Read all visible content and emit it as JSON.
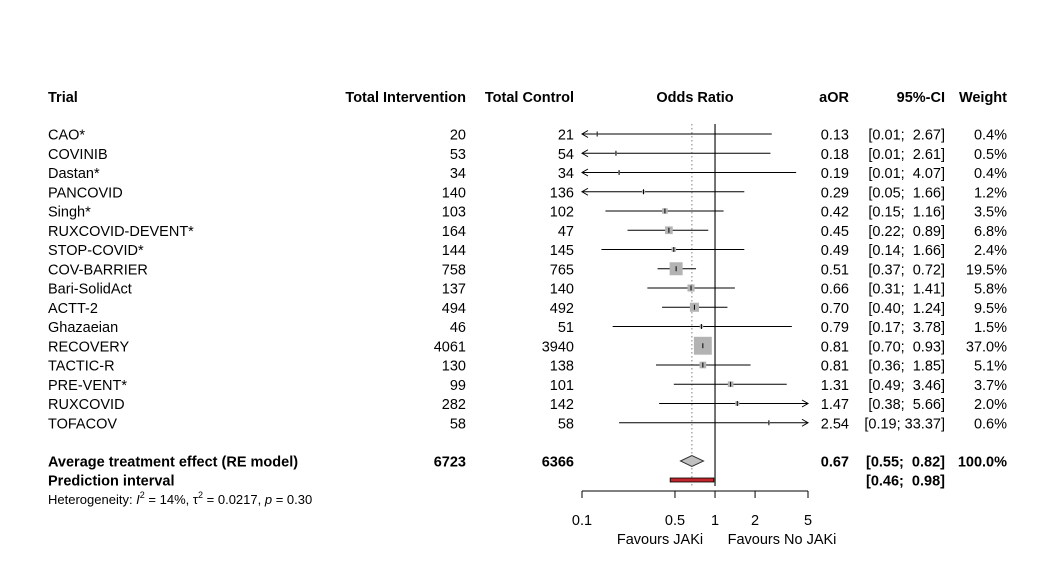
{
  "chart_data": {
    "type": "forest",
    "columns": {
      "trial": "Trial",
      "total_intervention": "Total Intervention",
      "total_control": "Total Control",
      "odds_ratio": "Odds Ratio",
      "aor": "aOR",
      "ci": "95%-CI",
      "weight": "Weight"
    },
    "studies": [
      {
        "trial": "CAO*",
        "n_int": "20",
        "n_ctrl": "21",
        "or": 0.13,
        "lo": 0.01,
        "hi": 2.67,
        "aor": "0.13",
        "ci": "[0.01;  2.67]",
        "weight": "0.4%",
        "w": 0.4
      },
      {
        "trial": "COVINIB",
        "n_int": "53",
        "n_ctrl": "54",
        "or": 0.18,
        "lo": 0.01,
        "hi": 2.61,
        "aor": "0.18",
        "ci": "[0.01;  2.61]",
        "weight": "0.5%",
        "w": 0.5
      },
      {
        "trial": "Dastan*",
        "n_int": "34",
        "n_ctrl": "34",
        "or": 0.19,
        "lo": 0.01,
        "hi": 4.07,
        "aor": "0.19",
        "ci": "[0.01;  4.07]",
        "weight": "0.4%",
        "w": 0.4
      },
      {
        "trial": "PANCOVID",
        "n_int": "140",
        "n_ctrl": "136",
        "or": 0.29,
        "lo": 0.05,
        "hi": 1.66,
        "aor": "0.29",
        "ci": "[0.05;  1.66]",
        "weight": "1.2%",
        "w": 1.2
      },
      {
        "trial": "Singh*",
        "n_int": "103",
        "n_ctrl": "102",
        "or": 0.42,
        "lo": 0.15,
        "hi": 1.16,
        "aor": "0.42",
        "ci": "[0.15;  1.16]",
        "weight": "3.5%",
        "w": 3.5
      },
      {
        "trial": "RUXCOVID-DEVENT*",
        "n_int": "164",
        "n_ctrl": "47",
        "or": 0.45,
        "lo": 0.22,
        "hi": 0.89,
        "aor": "0.45",
        "ci": "[0.22;  0.89]",
        "weight": "6.8%",
        "w": 6.8
      },
      {
        "trial": "STOP-COVID*",
        "n_int": "144",
        "n_ctrl": "145",
        "or": 0.49,
        "lo": 0.14,
        "hi": 1.66,
        "aor": "0.49",
        "ci": "[0.14;  1.66]",
        "weight": "2.4%",
        "w": 2.4
      },
      {
        "trial": "COV-BARRIER",
        "n_int": "758",
        "n_ctrl": "765",
        "or": 0.51,
        "lo": 0.37,
        "hi": 0.72,
        "aor": "0.51",
        "ci": "[0.37;  0.72]",
        "weight": "19.5%",
        "w": 19.5
      },
      {
        "trial": "Bari-SolidAct",
        "n_int": "137",
        "n_ctrl": "140",
        "or": 0.66,
        "lo": 0.31,
        "hi": 1.41,
        "aor": "0.66",
        "ci": "[0.31;  1.41]",
        "weight": "5.8%",
        "w": 5.8
      },
      {
        "trial": "ACTT-2",
        "n_int": "494",
        "n_ctrl": "492",
        "or": 0.7,
        "lo": 0.4,
        "hi": 1.24,
        "aor": "0.70",
        "ci": "[0.40;  1.24]",
        "weight": "9.5%",
        "w": 9.5
      },
      {
        "trial": "Ghazaeian",
        "n_int": "46",
        "n_ctrl": "51",
        "or": 0.79,
        "lo": 0.17,
        "hi": 3.78,
        "aor": "0.79",
        "ci": "[0.17;  3.78]",
        "weight": "1.5%",
        "w": 1.5
      },
      {
        "trial": "RECOVERY",
        "n_int": "4061",
        "n_ctrl": "3940",
        "or": 0.81,
        "lo": 0.7,
        "hi": 0.93,
        "aor": "0.81",
        "ci": "[0.70;  0.93]",
        "weight": "37.0%",
        "w": 37.0
      },
      {
        "trial": "TACTIC-R",
        "n_int": "130",
        "n_ctrl": "138",
        "or": 0.81,
        "lo": 0.36,
        "hi": 1.85,
        "aor": "0.81",
        "ci": "[0.36;  1.85]",
        "weight": "5.1%",
        "w": 5.1
      },
      {
        "trial": "PRE-VENT*",
        "n_int": "99",
        "n_ctrl": "101",
        "or": 1.31,
        "lo": 0.49,
        "hi": 3.46,
        "aor": "1.31",
        "ci": "[0.49;  3.46]",
        "weight": "3.7%",
        "w": 3.7
      },
      {
        "trial": "RUXCOVID",
        "n_int": "282",
        "n_ctrl": "142",
        "or": 1.47,
        "lo": 0.38,
        "hi": 5.66,
        "aor": "1.47",
        "ci": "[0.38;  5.66]",
        "weight": "2.0%",
        "w": 2.0
      },
      {
        "trial": "TOFACOV",
        "n_int": "58",
        "n_ctrl": "58",
        "or": 2.54,
        "lo": 0.19,
        "hi": 33.37,
        "aor": "2.54",
        "ci": "[0.19; 33.37]",
        "weight": "0.6%",
        "w": 0.6
      }
    ],
    "summary": {
      "label": "Average treatment effect (RE model)",
      "n_int": "6723",
      "n_ctrl": "6366",
      "or": 0.67,
      "lo": 0.55,
      "hi": 0.82,
      "aor": "0.67",
      "ci": "[0.55;  0.82]",
      "weight": "100.0%"
    },
    "prediction": {
      "label": "Prediction interval",
      "lo": 0.46,
      "hi": 0.98,
      "ci": "[0.46;  0.98]"
    },
    "heterogeneity": {
      "prefix": "Heterogeneity: ",
      "i2_symbol": "I",
      "i2_sup": "2",
      "i2_value": " = 14%, ",
      "tau_symbol": "τ",
      "tau_sup": "2",
      "tau_value": " = 0.0217, ",
      "p_symbol": "p",
      "p_value": " = 0.30"
    },
    "x_axis": {
      "scale": "log",
      "range": [
        0.1,
        5
      ],
      "ticks": [
        0.1,
        0.5,
        1,
        2,
        5
      ],
      "tick_labels": [
        "0.1",
        "0.5",
        "1",
        "2",
        "5"
      ],
      "null_value": 1,
      "label_left": "Favours JAKi",
      "label_right": "Favours No JAKi"
    },
    "colors": {
      "square": "#b3b3b3",
      "diamond": "#c0c0c0",
      "prediction": "#c0262b",
      "line": "#000000",
      "dotted": "#808080"
    }
  }
}
